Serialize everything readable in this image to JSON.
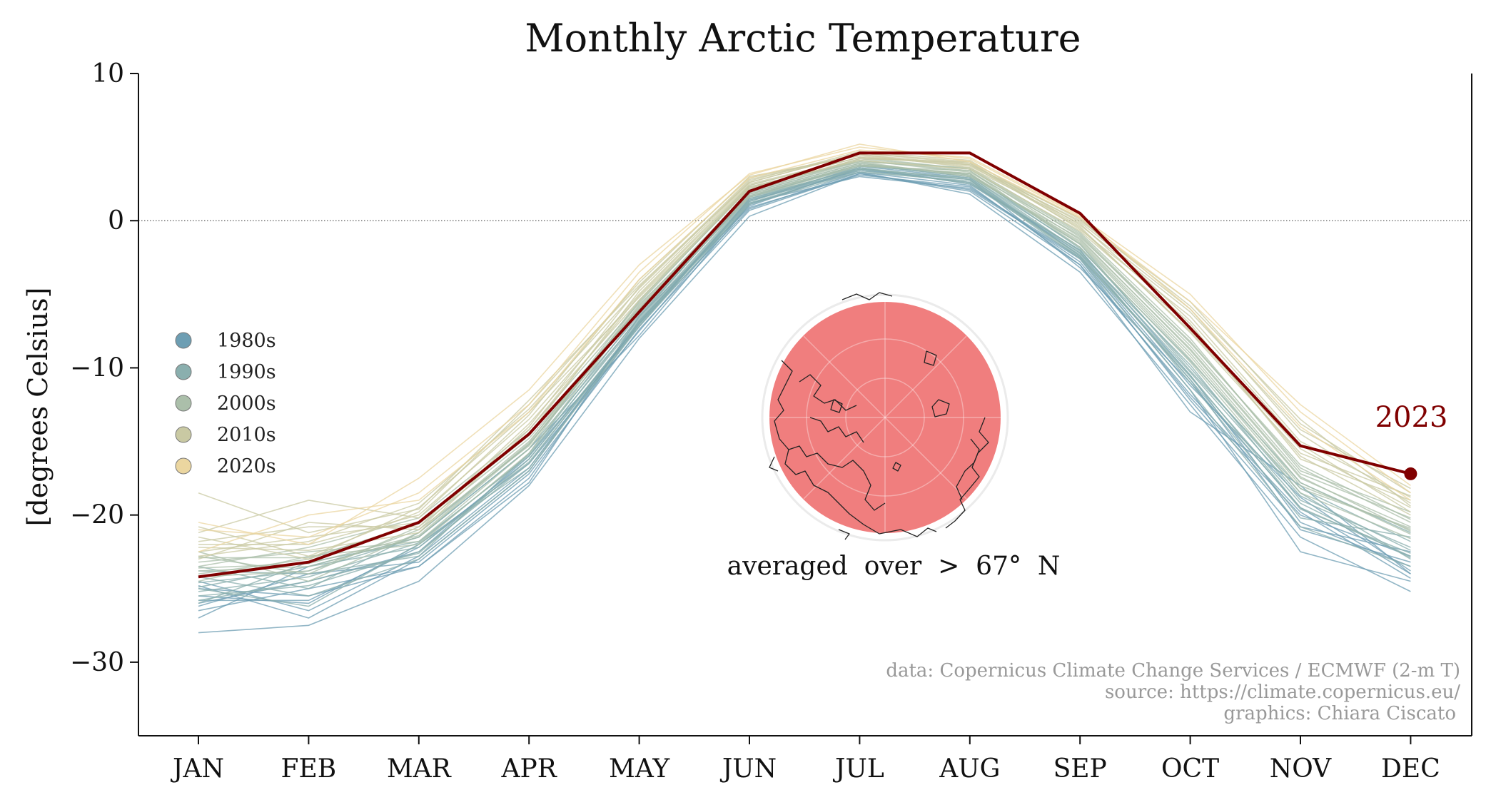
{
  "chart_data": {
    "type": "line",
    "title": "Monthly Arctic Temperature",
    "ylabel": "[degrees Celsius]",
    "xlabel": "",
    "categories": [
      "JAN",
      "FEB",
      "MAR",
      "APR",
      "MAY",
      "JUN",
      "JUL",
      "AUG",
      "SEP",
      "OCT",
      "NOV",
      "DEC"
    ],
    "ylim": [
      -35,
      10
    ],
    "yticks": [
      -30,
      -20,
      -10,
      0,
      10
    ],
    "ytick_labels": [
      "−30",
      "−20",
      "−10",
      "0",
      "10"
    ],
    "zero_line": true,
    "grid": false,
    "legend_placement": "left",
    "legend": [
      {
        "label": "1980s",
        "color": "#6d9eb3"
      },
      {
        "label": "1990s",
        "color": "#8aafae"
      },
      {
        "label": "2000s",
        "color": "#abbfaa"
      },
      {
        "label": "2010s",
        "color": "#c9c9a3"
      },
      {
        "label": "2020s",
        "color": "#ebd6a0"
      }
    ],
    "highlight": {
      "name": "2023",
      "label": "2023",
      "color": "#800000",
      "values": [
        -24.2,
        -23.2,
        -20.5,
        -14.5,
        -6.2,
        2.0,
        4.6,
        4.6,
        0.5,
        -7.3,
        -15.3,
        -17.2
      ]
    },
    "decade_series": [
      {
        "decade": "1980s",
        "color": "#6d9eb3",
        "years": [
          [
            -28.0,
            -27.5,
            -24.5,
            -18.0,
            -8.0,
            0.3,
            3.2,
            2.0,
            -3.0,
            -13.0,
            -18.0,
            -24.0
          ],
          [
            -26.5,
            -25.0,
            -23.5,
            -17.5,
            -7.0,
            0.8,
            3.3,
            1.8,
            -3.5,
            -12.5,
            -21.5,
            -25.2
          ],
          [
            -25.5,
            -26.0,
            -22.0,
            -16.5,
            -7.5,
            1.2,
            3.0,
            2.2,
            -2.5,
            -11.5,
            -22.5,
            -24.5
          ],
          [
            -24.8,
            -27.0,
            -23.0,
            -17.0,
            -6.8,
            1.0,
            3.6,
            2.5,
            -2.0,
            -10.5,
            -20.5,
            -23.5
          ],
          [
            -26.0,
            -24.5,
            -22.5,
            -16.0,
            -7.2,
            1.5,
            3.4,
            2.8,
            -3.2,
            -11.0,
            -19.5,
            -24.0
          ],
          [
            -25.0,
            -25.5,
            -23.5,
            -17.8,
            -6.5,
            0.9,
            3.1,
            2.3,
            -2.8,
            -12.0,
            -20.0,
            -22.8
          ],
          [
            -27.0,
            -23.5,
            -21.5,
            -15.5,
            -7.8,
            1.1,
            3.5,
            2.6,
            -2.2,
            -10.8,
            -21.0,
            -23.2
          ],
          [
            -24.5,
            -26.5,
            -22.8,
            -16.8,
            -6.9,
            1.4,
            3.3,
            2.4,
            -3.0,
            -11.8,
            -19.8,
            -24.3
          ],
          [
            -26.2,
            -24.0,
            -23.2,
            -17.2,
            -7.4,
            0.7,
            3.2,
            2.1,
            -2.6,
            -12.2,
            -20.8,
            -22.5
          ],
          [
            -25.8,
            -25.8,
            -22.2,
            -16.2,
            -7.0,
            1.3,
            3.7,
            2.9,
            -2.4,
            -11.2,
            -18.8,
            -23.8
          ]
        ]
      },
      {
        "decade": "1990s",
        "color": "#8aafae",
        "years": [
          [
            -25.5,
            -24.8,
            -22.5,
            -16.5,
            -6.8,
            1.5,
            3.6,
            2.8,
            -2.4,
            -10.5,
            -19.5,
            -22.8
          ],
          [
            -24.2,
            -25.5,
            -23.0,
            -17.0,
            -7.0,
            1.2,
            3.4,
            2.6,
            -2.0,
            -11.0,
            -20.2,
            -21.5
          ],
          [
            -26.0,
            -23.2,
            -21.8,
            -16.0,
            -6.5,
            1.8,
            3.8,
            3.0,
            -1.8,
            -10.0,
            -18.5,
            -23.0
          ],
          [
            -23.8,
            -24.0,
            -22.8,
            -15.8,
            -6.2,
            1.6,
            3.5,
            2.9,
            -2.2,
            -9.8,
            -19.0,
            -22.2
          ],
          [
            -25.0,
            -26.2,
            -22.0,
            -16.8,
            -7.2,
            1.1,
            3.3,
            2.7,
            -2.6,
            -11.5,
            -20.8,
            -23.5
          ],
          [
            -24.6,
            -23.8,
            -21.5,
            -15.5,
            -6.6,
            1.9,
            3.9,
            3.1,
            -1.6,
            -10.2,
            -18.2,
            -21.8
          ],
          [
            -25.8,
            -24.5,
            -22.6,
            -16.2,
            -6.9,
            1.4,
            3.6,
            2.5,
            -2.3,
            -10.8,
            -19.6,
            -22.6
          ],
          [
            -23.5,
            -25.0,
            -21.2,
            -15.2,
            -6.4,
            1.7,
            3.7,
            3.2,
            -1.9,
            -9.5,
            -17.8,
            -21.2
          ],
          [
            -24.9,
            -23.5,
            -22.2,
            -16.4,
            -7.1,
            1.3,
            3.5,
            2.8,
            -2.5,
            -10.6,
            -19.2,
            -22.9
          ],
          [
            -25.2,
            -24.2,
            -21.9,
            -15.9,
            -6.7,
            1.6,
            3.8,
            3.0,
            -2.1,
            -10.3,
            -18.7,
            -22.4
          ]
        ]
      },
      {
        "decade": "2000s",
        "color": "#abbfaa",
        "years": [
          [
            -23.8,
            -23.5,
            -21.5,
            -15.2,
            -6.0,
            1.8,
            3.8,
            3.2,
            -1.5,
            -9.2,
            -18.0,
            -21.0
          ],
          [
            -24.5,
            -22.8,
            -22.0,
            -15.8,
            -5.8,
            2.0,
            4.0,
            3.0,
            -1.2,
            -8.8,
            -17.5,
            -20.8
          ],
          [
            -22.8,
            -24.0,
            -20.8,
            -14.8,
            -6.2,
            1.6,
            3.7,
            3.4,
            -1.8,
            -9.6,
            -18.5,
            -21.6
          ],
          [
            -23.2,
            -22.5,
            -21.8,
            -15.5,
            -5.5,
            2.2,
            4.1,
            3.3,
            -1.0,
            -8.5,
            -17.2,
            -20.2
          ],
          [
            -24.0,
            -23.0,
            -20.5,
            -14.5,
            -5.9,
            1.9,
            3.9,
            3.1,
            -1.4,
            -9.0,
            -17.8,
            -21.3
          ],
          [
            -22.5,
            -24.5,
            -21.2,
            -15.0,
            -6.1,
            2.1,
            4.2,
            3.5,
            -1.1,
            -8.2,
            -16.8,
            -20.5
          ],
          [
            -23.5,
            -22.2,
            -20.2,
            -14.2,
            -5.6,
            2.3,
            4.0,
            3.6,
            -0.8,
            -8.0,
            -17.0,
            -19.8
          ],
          [
            -24.2,
            -23.8,
            -21.0,
            -15.3,
            -5.7,
            1.7,
            3.8,
            3.2,
            -1.6,
            -9.4,
            -18.2,
            -20.9
          ],
          [
            -22.9,
            -22.9,
            -20.6,
            -14.6,
            -6.0,
            2.0,
            4.1,
            3.4,
            -1.3,
            -8.7,
            -17.4,
            -21.1
          ],
          [
            -23.6,
            -23.3,
            -21.4,
            -15.1,
            -5.4,
            2.4,
            4.3,
            3.5,
            -0.9,
            -8.3,
            -16.6,
            -20.3
          ]
        ]
      },
      {
        "decade": "2010s",
        "color": "#c9c9a3",
        "years": [
          [
            -22.0,
            -22.0,
            -20.0,
            -13.5,
            -5.0,
            2.5,
            4.3,
            3.8,
            -0.5,
            -7.5,
            -15.5,
            -19.5
          ],
          [
            -23.0,
            -20.5,
            -21.0,
            -14.0,
            -4.5,
            2.8,
            4.5,
            3.6,
            -0.2,
            -7.0,
            -16.2,
            -19.0
          ],
          [
            -21.5,
            -23.0,
            -19.5,
            -13.0,
            -5.2,
            2.2,
            4.2,
            4.0,
            -0.6,
            -6.5,
            -15.0,
            -18.8
          ],
          [
            -22.5,
            -21.5,
            -20.5,
            -14.5,
            -4.8,
            2.6,
            4.6,
            3.9,
            -0.1,
            -6.0,
            -14.5,
            -19.2
          ],
          [
            -20.8,
            -22.8,
            -19.8,
            -12.5,
            -4.2,
            3.0,
            4.4,
            3.7,
            0.0,
            -5.5,
            -13.8,
            -18.5
          ],
          [
            -21.8,
            -20.8,
            -20.8,
            -13.8,
            -5.4,
            2.3,
            4.1,
            3.5,
            -0.7,
            -7.2,
            -16.0,
            -20.0
          ],
          [
            -22.8,
            -21.8,
            -19.2,
            -12.8,
            -4.6,
            2.7,
            4.7,
            4.1,
            -0.3,
            -6.2,
            -14.2,
            -18.2
          ],
          [
            -21.2,
            -19.0,
            -20.2,
            -13.2,
            -4.0,
            2.9,
            4.5,
            3.8,
            0.2,
            -6.8,
            -15.2,
            -19.8
          ],
          [
            -22.2,
            -22.4,
            -21.2,
            -14.2,
            -5.1,
            2.4,
            4.3,
            3.9,
            -0.4,
            -7.6,
            -15.8,
            -18.7
          ],
          [
            -18.5,
            -21.2,
            -19.6,
            -12.2,
            -4.4,
            2.6,
            4.6,
            4.0,
            0.1,
            -5.8,
            -13.5,
            -19.4
          ]
        ]
      },
      {
        "decade": "2020s",
        "color": "#ebd6a0",
        "years": [
          [
            -21.0,
            -21.5,
            -18.5,
            -12.5,
            -3.5,
            3.2,
            5.0,
            4.2,
            0.3,
            -5.0,
            -13.0,
            -18.5
          ],
          [
            -22.5,
            -20.0,
            -19.0,
            -13.0,
            -4.0,
            2.9,
            4.8,
            4.3,
            0.4,
            -6.0,
            -14.0,
            -19.0
          ],
          [
            -20.5,
            -22.0,
            -17.5,
            -11.5,
            -3.0,
            3.1,
            5.2,
            4.0,
            0.2,
            -5.5,
            -12.5,
            -18.0
          ]
        ]
      }
    ],
    "inset": {
      "caption": "averaged  over  >  67°  N",
      "fill_color": "#f07e7e"
    },
    "credits": [
      "data: Copernicus Climate Change Services / ECMWF (2-m T)",
      "source: https://climate.copernicus.eu/",
      "graphics: Chiara Ciscato"
    ]
  }
}
